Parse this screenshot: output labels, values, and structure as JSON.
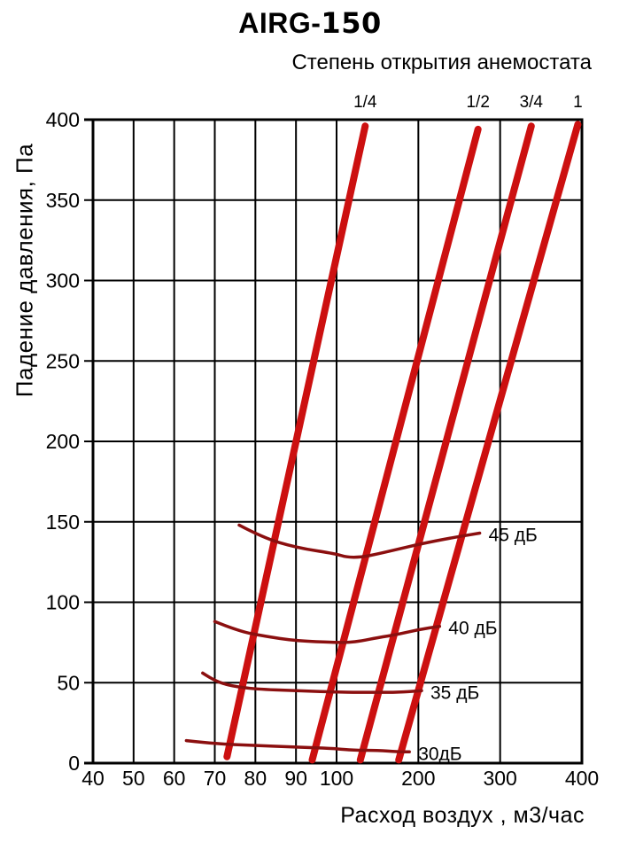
{
  "title": {
    "prefix": "AIRG-",
    "model": "150"
  },
  "chart_data": {
    "type": "line",
    "title": "AIRG-150",
    "subtitle": "Степень открытия анемостата",
    "x_axis": {
      "label": "Расход воздух , м3/час",
      "unit": "м3/час",
      "ticks": [
        40,
        50,
        60,
        70,
        80,
        90,
        100,
        200,
        300,
        400
      ],
      "range": [
        40,
        400
      ],
      "scale": "segmented-linear: 40-100 step 10, 100-400 step 100"
    },
    "y_axis": {
      "label": "Падение давления, Па",
      "unit": "Па",
      "ticks": [
        0,
        50,
        100,
        150,
        200,
        250,
        300,
        350,
        400
      ],
      "range": [
        0,
        400
      ],
      "scale": "linear"
    },
    "grid": true,
    "legend_position": "opening fractions above plot, noise labels inline right of curves",
    "opening_series": [
      {
        "name": "1/4",
        "points": [
          [
            73,
            4
          ],
          [
            135,
            396
          ]
        ]
      },
      {
        "name": "1/2",
        "points": [
          [
            94,
            2
          ],
          [
            273,
            394
          ]
        ]
      },
      {
        "name": "3/4",
        "points": [
          [
            129,
            2
          ],
          [
            338,
            396
          ]
        ]
      },
      {
        "name": "1",
        "points": [
          [
            176,
            2
          ],
          [
            395,
            397
          ]
        ]
      }
    ],
    "noise_series": [
      {
        "name": "45 дБ",
        "points": [
          [
            76,
            148
          ],
          [
            82,
            140
          ],
          [
            90,
            134
          ],
          [
            100,
            130
          ],
          [
            112,
            128
          ],
          [
            130,
            128
          ],
          [
            150,
            130
          ],
          [
            175,
            133
          ],
          [
            200,
            136
          ],
          [
            240,
            140
          ],
          [
            275,
            143
          ]
        ]
      },
      {
        "name": "40 дБ",
        "points": [
          [
            70,
            88
          ],
          [
            76,
            82
          ],
          [
            82,
            79
          ],
          [
            90,
            76
          ],
          [
            100,
            75
          ],
          [
            115,
            75
          ],
          [
            130,
            76
          ],
          [
            150,
            78
          ],
          [
            175,
            80
          ],
          [
            200,
            83
          ],
          [
            226,
            85
          ]
        ]
      },
      {
        "name": "35 дБ",
        "points": [
          [
            67,
            56
          ],
          [
            70,
            51
          ],
          [
            74,
            48
          ],
          [
            80,
            46
          ],
          [
            90,
            45
          ],
          [
            110,
            44
          ],
          [
            130,
            44
          ],
          [
            150,
            44
          ],
          [
            175,
            44
          ],
          [
            204,
            45
          ]
        ]
      },
      {
        "name": "30дБ",
        "points": [
          [
            63,
            14
          ],
          [
            70,
            12
          ],
          [
            80,
            11
          ],
          [
            90,
            10
          ],
          [
            100,
            9
          ],
          [
            120,
            8
          ],
          [
            150,
            8
          ],
          [
            175,
            7
          ],
          [
            189,
            7
          ]
        ]
      }
    ],
    "colors": {
      "opening_lines": "#cc1010",
      "noise_curves": "#8b0f0f",
      "grid": "#000000",
      "background": "#ffffff",
      "text": "#000000"
    }
  }
}
